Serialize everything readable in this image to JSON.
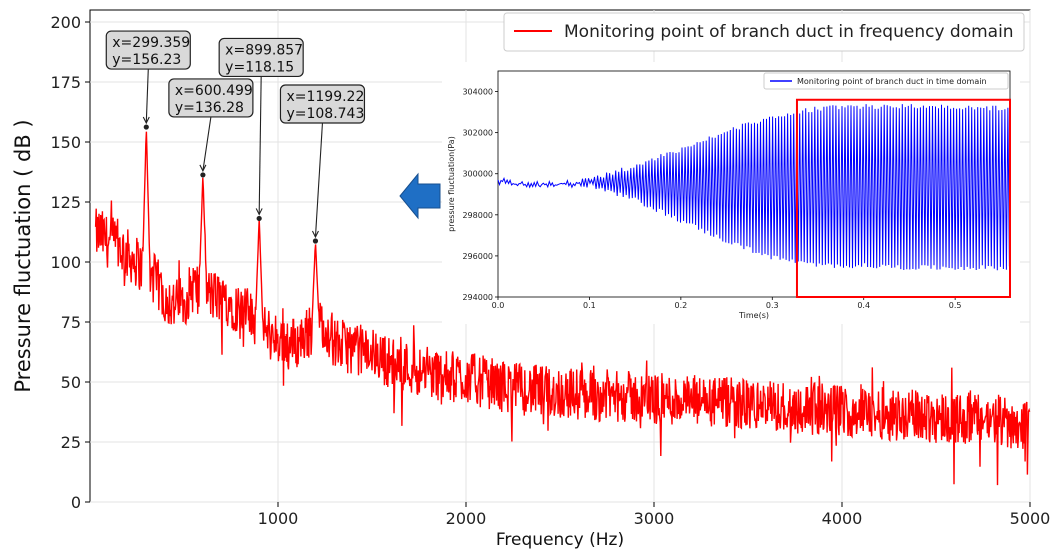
{
  "chart_data": [
    {
      "type": "line",
      "xlabel": "Frequency (Hz)",
      "ylabel": "Pressure fluctuation ( dB )",
      "xlim": [
        0,
        5000
      ],
      "ylim": [
        0,
        205
      ],
      "x_ticks": [
        "1000",
        "2000",
        "3000",
        "4000",
        "5000"
      ],
      "y_ticks": [
        "0",
        "25",
        "50",
        "75",
        "100",
        "125",
        "150",
        "175",
        "200"
      ],
      "grid": true,
      "legend_position": "top-right",
      "series": [
        {
          "name": "Monitoring point of branch duct in frequency domain",
          "color": "#ff0000",
          "x": [
            0,
            50,
            100,
            150,
            200,
            250,
            299.359,
            350,
            400,
            450,
            500,
            550,
            600.499,
            650,
            700,
            750,
            800,
            850,
            899.857,
            950,
            1000,
            1050,
            1100,
            1150,
            1199.22,
            1250,
            1300,
            1400,
            1500,
            1600,
            1700,
            1800,
            1900,
            2000,
            2100,
            2200,
            2400,
            2600,
            2800,
            3000,
            3200,
            3400,
            3600,
            3800,
            4000,
            4200,
            4400,
            4600,
            4800,
            5000
          ],
          "y": [
            110,
            112,
            108,
            107,
            103,
            100,
            156.23,
            92,
            85,
            82,
            84,
            90,
            136.28,
            86,
            85,
            83,
            80,
            78,
            118.15,
            70,
            68,
            67,
            66,
            70,
            108.743,
            75,
            66,
            64,
            62,
            58,
            56,
            54,
            52,
            52,
            50,
            48,
            46,
            45,
            44,
            43,
            42,
            41,
            40,
            39,
            38,
            37,
            36,
            35,
            34,
            32
          ]
        }
      ],
      "annotations": [
        {
          "x_text": "x=299.359",
          "y_text": "y=156.23",
          "x": 299.359,
          "y": 156.23
        },
        {
          "x_text": "x=600.499",
          "y_text": "y=136.28",
          "x": 600.499,
          "y": 136.28
        },
        {
          "x_text": "x=899.857",
          "y_text": "y=118.15",
          "x": 899.857,
          "y": 118.15
        },
        {
          "x_text": "x=1199.22",
          "y_text": "y=108.743",
          "x": 1199.22,
          "y": 108.743
        }
      ]
    },
    {
      "type": "line",
      "xlabel": "Time(s)",
      "ylabel": "pressure fluctuation(Pa)",
      "xlim": [
        0,
        0.56
      ],
      "ylim": [
        294000,
        305000
      ],
      "x_ticks": [
        "0.0",
        "0.1",
        "0.2",
        "0.3",
        "0.4",
        "0.5"
      ],
      "y_ticks": [
        "294000",
        "296000",
        "298000",
        "300000",
        "302000",
        "304000"
      ],
      "legend_position": "top-right",
      "series": [
        {
          "name": "Monitoring point of branch duct in time domain",
          "color": "#0000ff",
          "x": [
            0,
            0.05,
            0.1,
            0.15,
            0.2,
            0.25,
            0.3,
            0.35,
            0.4,
            0.45,
            0.5,
            0.56
          ],
          "envelope_upper": [
            299800,
            299600,
            299800,
            300500,
            301300,
            302200,
            302900,
            303300,
            303400,
            303400,
            303400,
            303300
          ],
          "envelope_lower": [
            299400,
            299300,
            299300,
            298600,
            297600,
            296600,
            295800,
            295400,
            295400,
            295300,
            295300,
            295300
          ]
        }
      ],
      "highlight_box": {
        "x_from": 0.327,
        "x_to": 0.56,
        "y_from": 294000,
        "y_to": 303600,
        "color": "#ff0000"
      }
    }
  ],
  "arrow_color": "#1f6fc5"
}
